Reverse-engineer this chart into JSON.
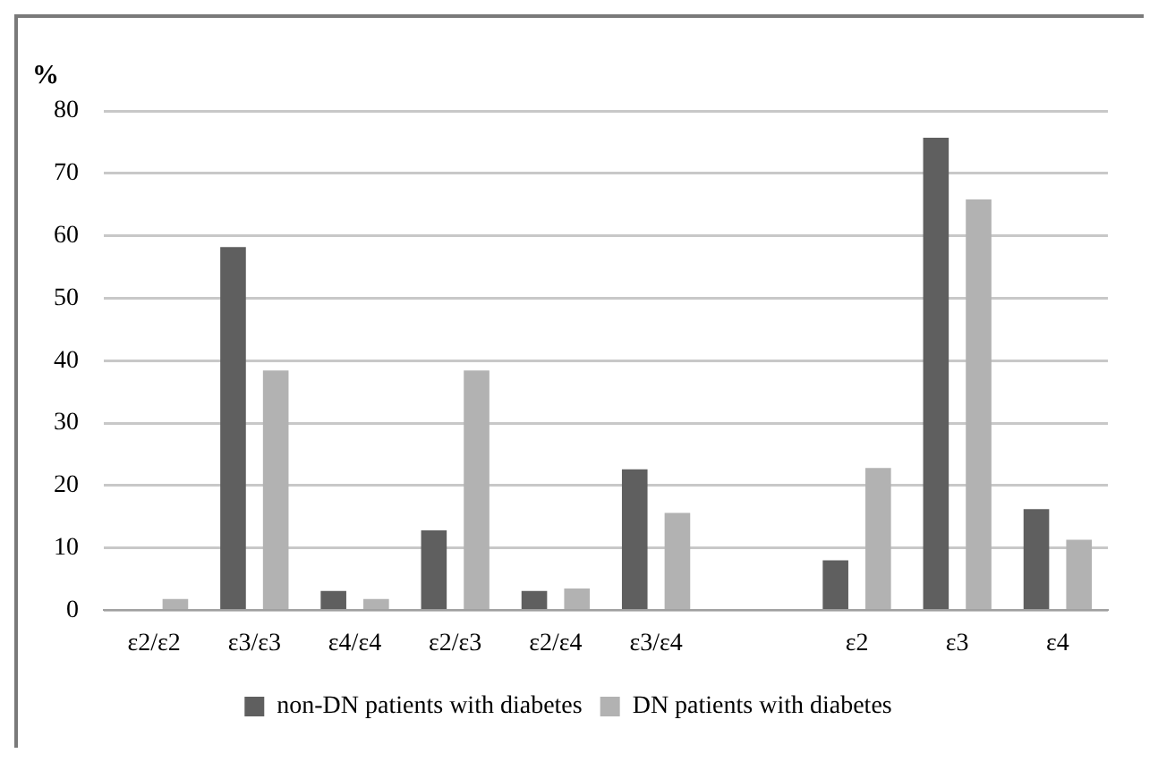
{
  "chart_data": {
    "type": "bar",
    "ylabel": "%",
    "categories": [
      "ε2/ε2",
      "ε3/ε3",
      "ε4/ε4",
      "ε2/ε3",
      "ε2/ε4",
      "ε3/ε4",
      null,
      "ε2",
      "ε3",
      "ε4"
    ],
    "series": [
      {
        "name": "non-DN patients with diabetes",
        "color": "#5f5f5f",
        "values": [
          0,
          58.2,
          3.1,
          12.8,
          3.1,
          22.6,
          null,
          8,
          75.7,
          16.2
        ]
      },
      {
        "name": "DN patients with diabetes",
        "color": "#b2b2b2",
        "values": [
          1.8,
          38.4,
          1.8,
          38.4,
          3.5,
          15.6,
          null,
          22.8,
          65.8,
          11.3
        ]
      }
    ],
    "ylim": [
      0,
      80
    ],
    "yticks": [
      0,
      10,
      20,
      30,
      40,
      50,
      60,
      70,
      80
    ],
    "grid": "y",
    "legend": "bottom"
  }
}
